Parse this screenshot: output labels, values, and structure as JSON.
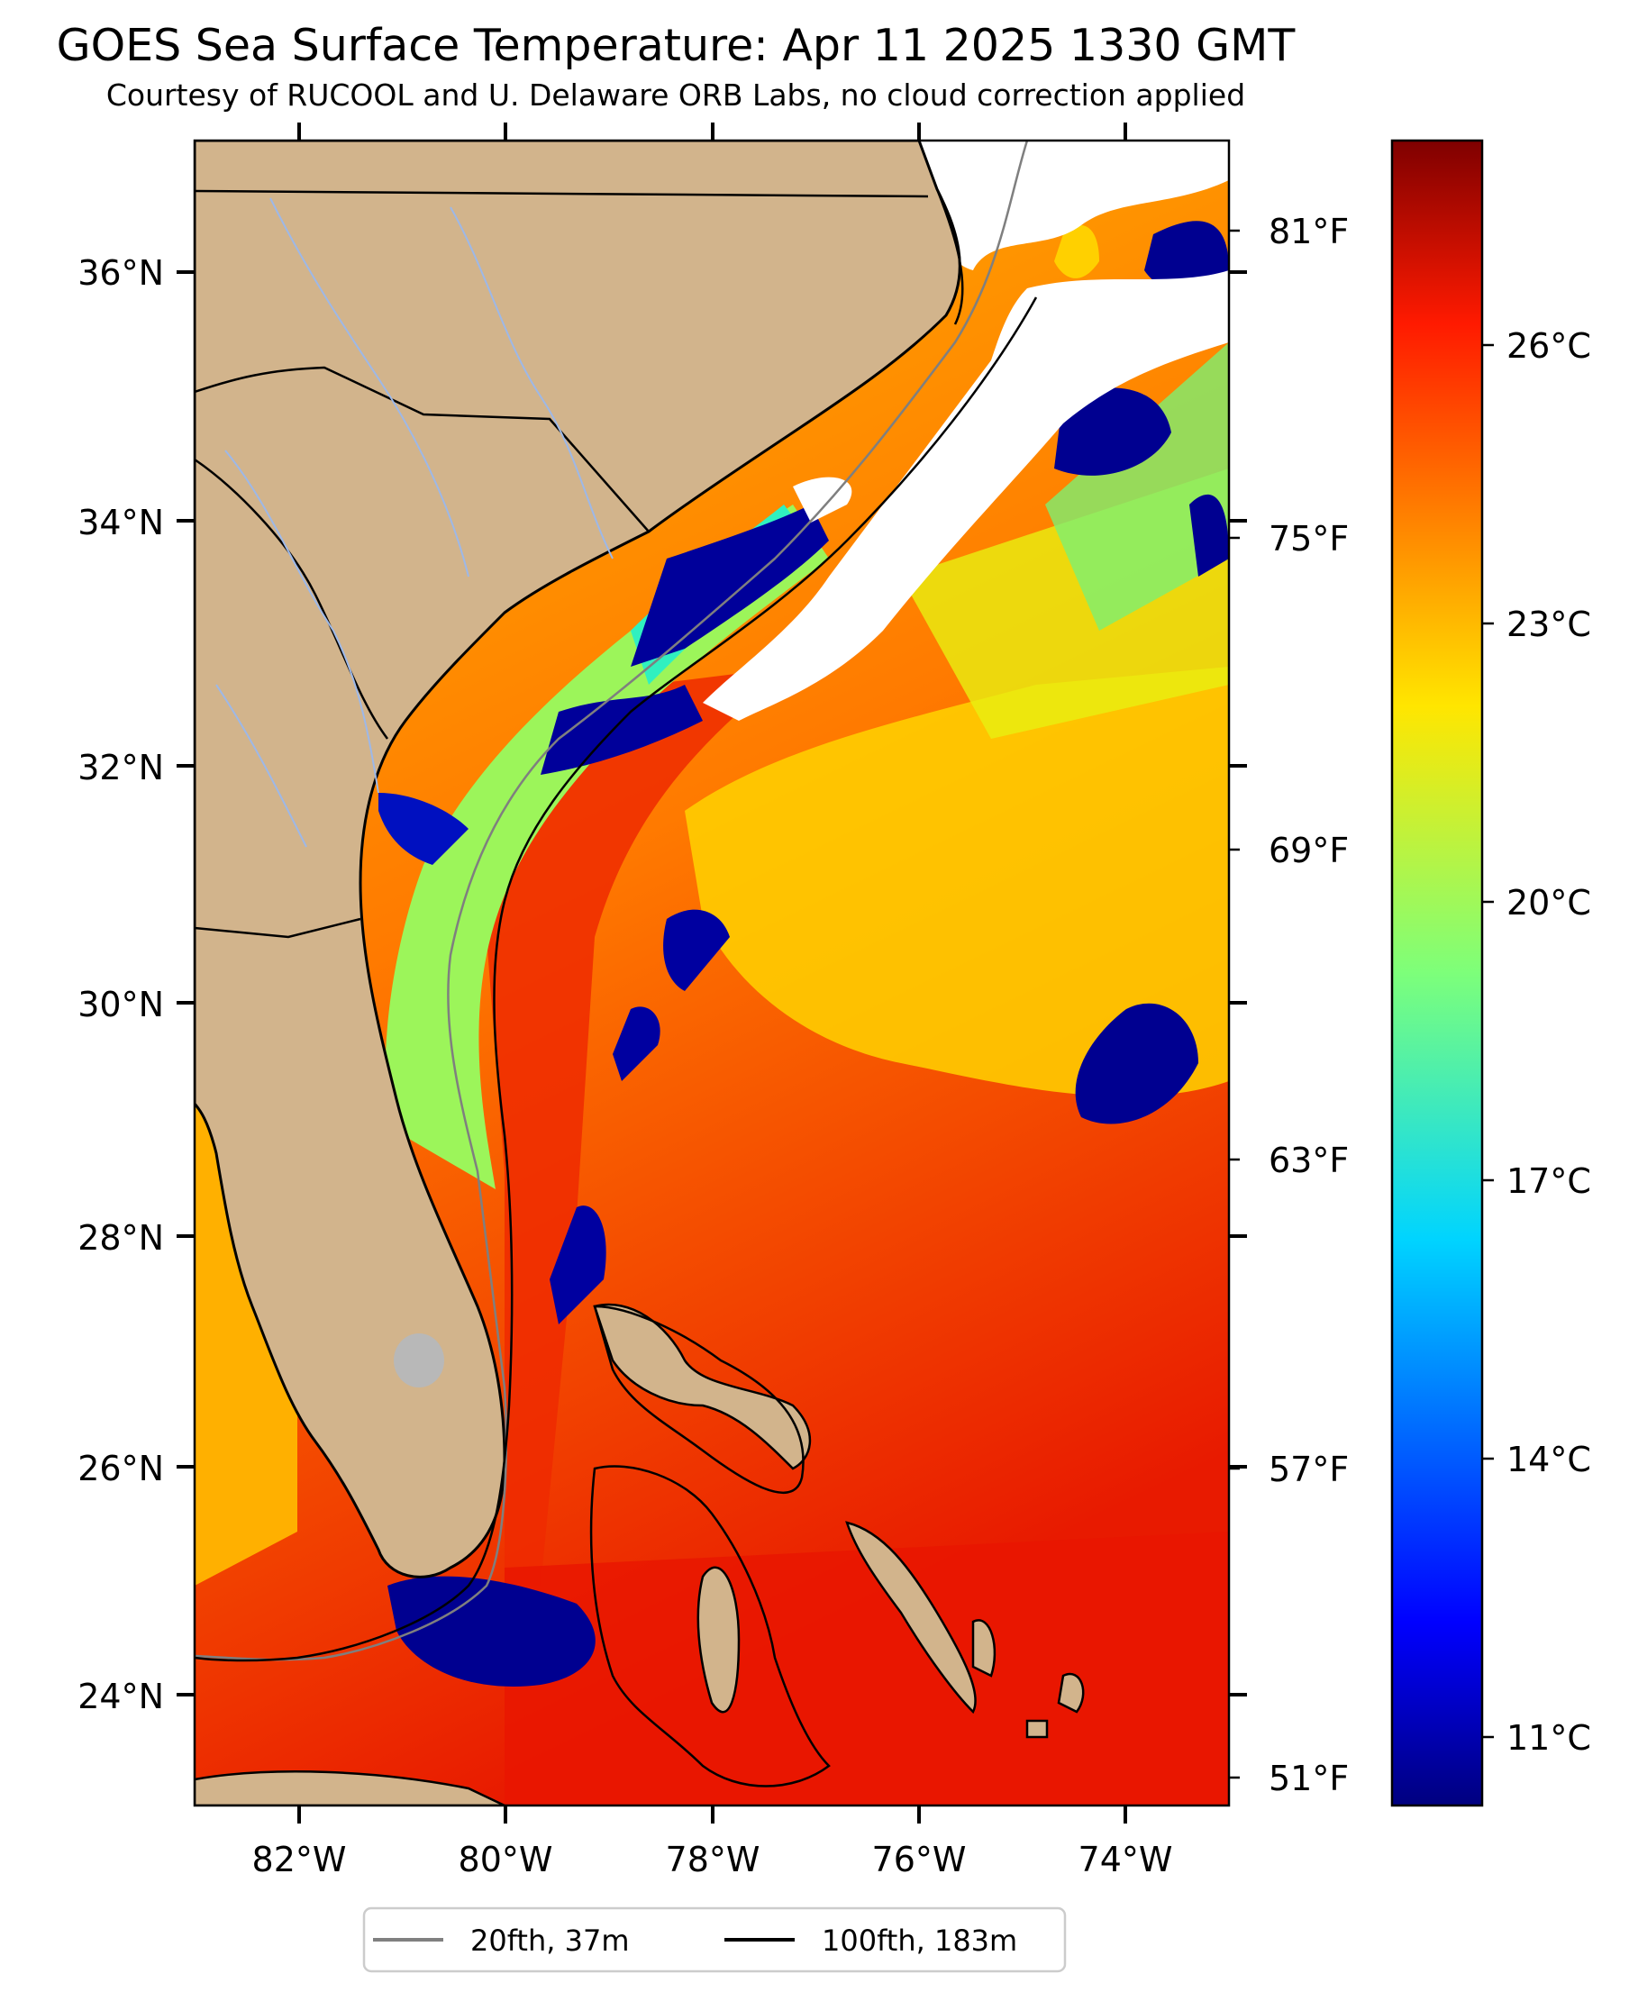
{
  "title": "GOES Sea Surface Temperature: Apr 11 2025 1330 GMT",
  "subtitle": "Courtesy of RUCOOL and U. Delaware ORB Labs, no cloud correction applied",
  "map": {
    "lon_range": [
      -83,
      -73
    ],
    "lat_range": [
      23.1,
      37.0
    ],
    "lat_ticks": [
      "36°N",
      "34°N",
      "32°N",
      "30°N",
      "28°N",
      "26°N",
      "24°N"
    ],
    "lon_ticks": [
      "82°W",
      "80°W",
      "78°W",
      "76°W",
      "74°W"
    ],
    "fahrenheit_ticks": [
      "81°F",
      "75°F",
      "69°F",
      "63°F",
      "57°F",
      "51°F"
    ],
    "land_color": "#d2b48c",
    "cloud_color": "#ffffff",
    "colormap": "jet"
  },
  "colorbar": {
    "ticks": [
      "26°C",
      "23°C",
      "20°C",
      "17°C",
      "14°C",
      "11°C"
    ],
    "range_c": [
      10.0,
      28.0
    ]
  },
  "legend": {
    "items": [
      {
        "label": "20fth, 37m",
        "color": "#808080"
      },
      {
        "label": "100fth, 183m",
        "color": "#000000"
      }
    ]
  }
}
